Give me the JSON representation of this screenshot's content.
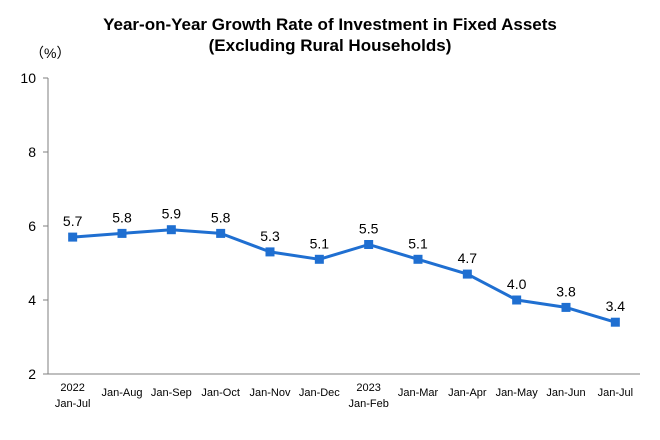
{
  "chart_data": {
    "type": "line",
    "title": "Year-on-Year Growth Rate of Investment in Fixed Assets",
    "subtitle": "(Excluding Rural Households)",
    "ylabel": "（%）",
    "xlabel": "",
    "ylim": [
      2,
      10
    ],
    "yticks": [
      2,
      4,
      6,
      8,
      10
    ],
    "grid": false,
    "legend": "none",
    "categories": [
      [
        "2022",
        "Jan-Jul"
      ],
      [
        "Jan-Aug"
      ],
      [
        "Jan-Sep"
      ],
      [
        "Jan-Oct"
      ],
      [
        "Jan-Nov"
      ],
      [
        "Jan-Dec"
      ],
      [
        "2023",
        "Jan-Feb"
      ],
      [
        "Jan-Mar"
      ],
      [
        "Jan-Apr"
      ],
      [
        "Jan-May"
      ],
      [
        "Jan-Jun"
      ],
      [
        "Jan-Jul"
      ]
    ],
    "series": [
      {
        "values": [
          5.7,
          5.8,
          5.9,
          5.8,
          5.3,
          5.1,
          5.5,
          5.1,
          4.7,
          4.0,
          3.8,
          3.4
        ],
        "labels": [
          "5.7",
          "5.8",
          "5.9",
          "5.8",
          "5.3",
          "5.1",
          "5.5",
          "5.1",
          "4.7",
          "4.0",
          "3.8",
          "3.4"
        ],
        "color": "#1f6fd1"
      }
    ]
  }
}
